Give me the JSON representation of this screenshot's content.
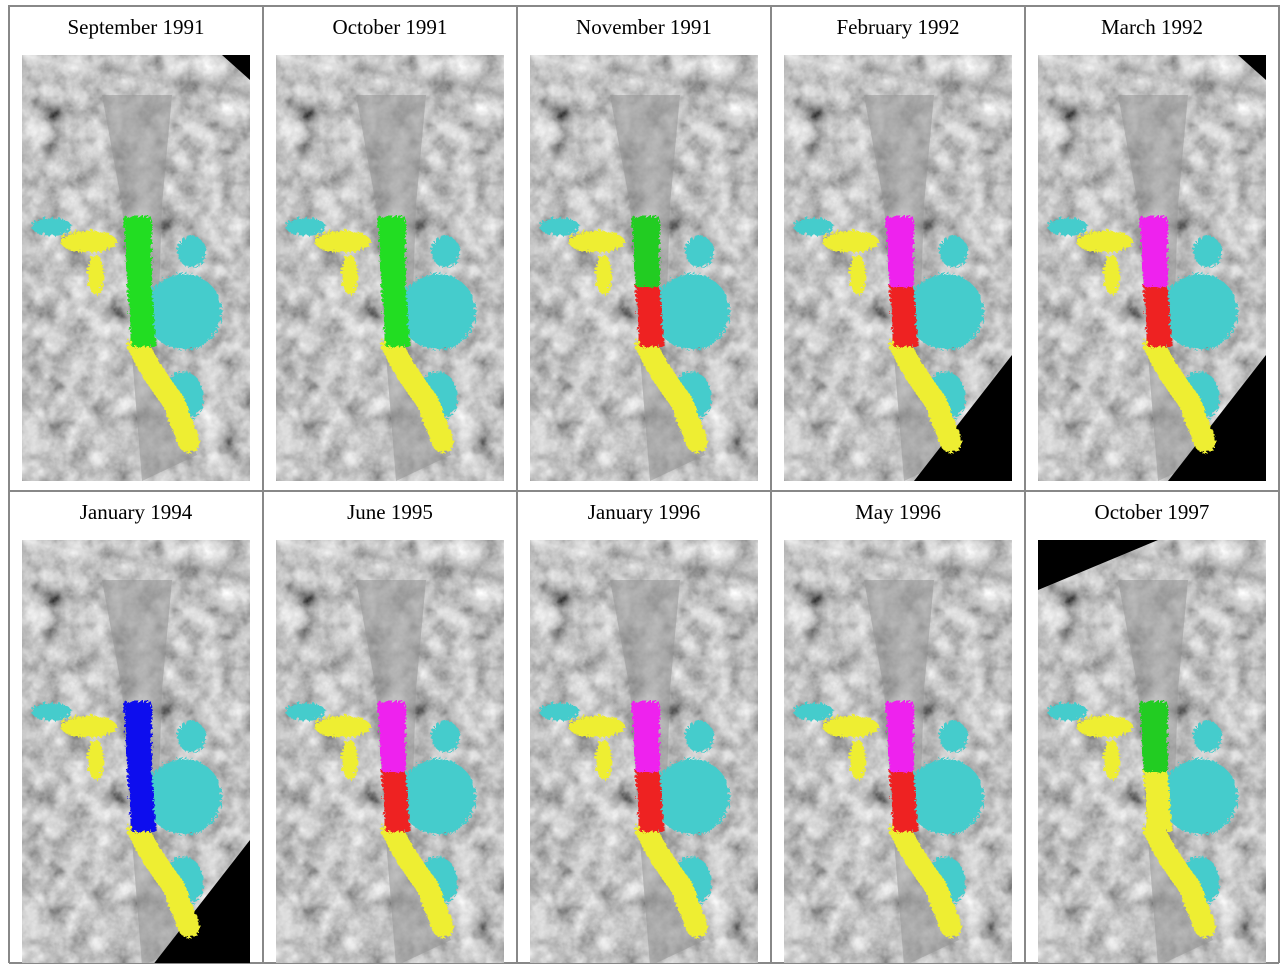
{
  "panels": [
    {
      "label": "September 1991"
    },
    {
      "label": "October 1991"
    },
    {
      "label": "November 1991"
    },
    {
      "label": "February 1992"
    },
    {
      "label": "March 1992"
    },
    {
      "label": "January 1994"
    },
    {
      "label": "June 1995"
    },
    {
      "label": "January 1996"
    },
    {
      "label": "May 1996"
    },
    {
      "label": "October 1997"
    }
  ]
}
